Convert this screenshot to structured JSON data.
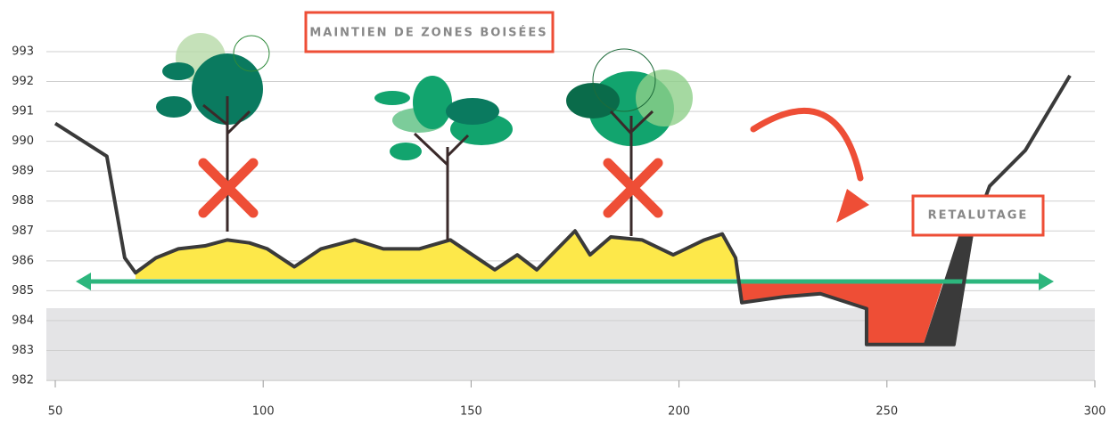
{
  "chart_data": {
    "type": "line",
    "annotations": [
      "MAINTIEN DE ZONES BOISÉES",
      "RETALUTAGE"
    ],
    "x": [
      50,
      62.4,
      66.7,
      69.3,
      74.2,
      79.6,
      86.0,
      91.4,
      96.7,
      101.0,
      107.5,
      113.9,
      122.0,
      128.9,
      137.5,
      145.0,
      151.4,
      155.7,
      161.1,
      165.8,
      175.0,
      178.6,
      183.6,
      191.1,
      198.6,
      206.1,
      210.4,
      213.6,
      215.1,
      225.4,
      234.0,
      245.1,
      245.1,
      266.1,
      270.4,
      274.7,
      283.3,
      294.0
    ],
    "series": [
      {
        "color": "#3a3a3a",
        "values": [
          990.6,
          989.5,
          986.1,
          985.6,
          986.1,
          986.4,
          986.5,
          986.7,
          986.6,
          986.4,
          985.8,
          986.4,
          986.7,
          986.4,
          986.4,
          986.7,
          986.1,
          985.7,
          986.2,
          985.7,
          987.0,
          986.2,
          986.8,
          986.7,
          986.2,
          986.7,
          986.9,
          986.1,
          984.6,
          984.8,
          984.9,
          984.4,
          983.2,
          983.2,
          986.9,
          988.5,
          989.7,
          992.2
        ]
      }
    ],
    "xlim": [
      50,
      300
    ],
    "ylim": [
      982,
      993
    ],
    "xticks": [
      50,
      100,
      150,
      200,
      250,
      300
    ],
    "yticks": [
      982,
      983,
      984,
      985,
      986,
      987,
      988,
      989,
      990,
      991,
      992,
      993
    ],
    "grid": true
  }
}
